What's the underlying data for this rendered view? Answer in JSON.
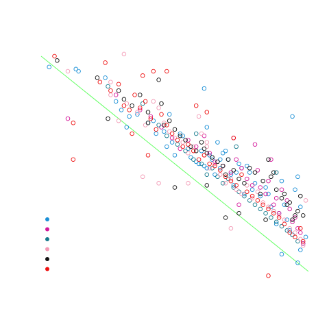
{
  "chart_data": {
    "type": "scatter",
    "title": "",
    "xlabel": "",
    "ylabel": "",
    "xlim": [
      0,
      100
    ],
    "ylim": [
      0,
      100
    ],
    "grid": false,
    "legend": {
      "placement": "left",
      "labels_shown": false
    },
    "trend_line": {
      "color": "#66ff66",
      "x": [
        0,
        100
      ],
      "y": [
        100,
        0
      ]
    },
    "series": [
      {
        "color": "#1a8fd6",
        "points": [
          [
            3,
            95
          ],
          [
            13,
            94
          ],
          [
            14,
            93
          ],
          [
            24,
            90
          ],
          [
            28,
            79
          ],
          [
            30,
            75
          ],
          [
            32,
            67
          ],
          [
            33,
            72
          ],
          [
            36,
            73
          ],
          [
            40,
            69
          ],
          [
            42,
            70
          ],
          [
            43,
            64
          ],
          [
            46,
            65
          ],
          [
            47,
            58
          ],
          [
            48,
            73
          ],
          [
            49,
            60
          ],
          [
            50,
            54
          ],
          [
            52,
            64
          ],
          [
            53,
            63
          ],
          [
            55,
            57
          ],
          [
            56,
            53
          ],
          [
            58,
            51
          ],
          [
            59,
            50
          ],
          [
            60,
            56
          ],
          [
            61,
            49
          ],
          [
            62,
            48
          ],
          [
            63,
            54
          ],
          [
            64,
            52
          ],
          [
            65,
            45
          ],
          [
            66,
            60
          ],
          [
            67,
            52
          ],
          [
            68,
            55
          ],
          [
            69,
            56
          ],
          [
            70,
            52
          ],
          [
            71,
            45
          ],
          [
            72,
            40
          ],
          [
            73,
            46
          ],
          [
            74,
            50
          ],
          [
            75,
            48
          ],
          [
            76,
            36
          ],
          [
            77,
            49
          ],
          [
            78,
            46
          ],
          [
            79,
            38
          ],
          [
            80,
            41
          ],
          [
            82,
            35
          ],
          [
            84,
            39
          ],
          [
            85,
            36
          ],
          [
            86,
            30
          ],
          [
            87,
            28
          ],
          [
            88,
            22
          ],
          [
            89,
            27
          ],
          [
            90,
            42
          ],
          [
            91,
            31
          ],
          [
            92,
            24
          ],
          [
            93,
            19
          ],
          [
            94,
            17
          ],
          [
            95,
            38
          ],
          [
            96,
            44
          ],
          [
            97,
            30
          ],
          [
            98,
            13
          ],
          [
            99,
            16
          ],
          [
            97,
            10
          ],
          [
            96,
            4
          ],
          [
            90,
            8
          ],
          [
            94,
            72
          ],
          [
            61,
            85
          ],
          [
            62,
            67
          ],
          [
            67,
            48
          ]
        ]
      },
      {
        "color": "#d4189a",
        "points": [
          [
            10,
            71
          ],
          [
            28,
            82
          ],
          [
            37,
            75
          ],
          [
            41,
            72
          ],
          [
            45,
            67
          ],
          [
            49,
            62
          ],
          [
            52,
            57
          ],
          [
            55,
            61
          ],
          [
            58,
            58
          ],
          [
            61,
            63
          ],
          [
            63,
            55
          ],
          [
            65,
            51
          ],
          [
            68,
            49
          ],
          [
            71,
            46
          ],
          [
            73,
            52
          ],
          [
            75,
            48
          ],
          [
            77,
            43
          ],
          [
            79,
            40
          ],
          [
            81,
            47
          ],
          [
            82,
            39
          ],
          [
            84,
            36
          ],
          [
            85,
            42
          ],
          [
            87,
            31
          ],
          [
            88,
            34
          ],
          [
            89,
            27
          ],
          [
            90,
            38
          ],
          [
            92,
            33
          ],
          [
            93,
            29
          ],
          [
            94,
            23
          ],
          [
            95,
            25
          ],
          [
            96,
            20
          ],
          [
            97,
            18
          ],
          [
            98,
            13
          ],
          [
            72,
            62
          ],
          [
            80,
            59
          ],
          [
            86,
            52
          ],
          [
            74,
            31
          ]
        ]
      },
      {
        "color": "#157a8c",
        "points": [
          [
            25,
            86
          ],
          [
            38,
            78
          ],
          [
            44,
            68
          ],
          [
            47,
            63
          ],
          [
            51,
            59
          ],
          [
            54,
            56
          ],
          [
            57,
            52
          ],
          [
            60,
            50
          ],
          [
            62,
            45
          ],
          [
            64,
            48
          ],
          [
            66,
            44
          ],
          [
            68,
            41
          ],
          [
            70,
            43
          ],
          [
            72,
            39
          ],
          [
            74,
            37
          ],
          [
            76,
            35
          ],
          [
            78,
            33
          ],
          [
            80,
            31
          ],
          [
            82,
            29
          ],
          [
            84,
            27
          ],
          [
            86,
            25
          ],
          [
            88,
            23
          ],
          [
            90,
            21
          ],
          [
            92,
            19
          ],
          [
            94,
            17
          ],
          [
            96,
            14
          ],
          [
            58,
            64
          ],
          [
            73,
            58
          ],
          [
            88,
            46
          ]
        ]
      },
      {
        "color": "#f39ab5",
        "points": [
          [
            10,
            93
          ],
          [
            26,
            82
          ],
          [
            29,
            70
          ],
          [
            31,
            101
          ],
          [
            32,
            78
          ],
          [
            36,
            74
          ],
          [
            39,
            68
          ],
          [
            42,
            79
          ],
          [
            44,
            76
          ],
          [
            46,
            69
          ],
          [
            48,
            65
          ],
          [
            50,
            62
          ],
          [
            53,
            60
          ],
          [
            55,
            55
          ],
          [
            57,
            58
          ],
          [
            59,
            72
          ],
          [
            61,
            54
          ],
          [
            62,
            60
          ],
          [
            63,
            48
          ],
          [
            65,
            50
          ],
          [
            67,
            45
          ],
          [
            69,
            41
          ],
          [
            71,
            43
          ],
          [
            73,
            38
          ],
          [
            75,
            36
          ],
          [
            77,
            40
          ],
          [
            79,
            34
          ],
          [
            81,
            37
          ],
          [
            83,
            32
          ],
          [
            85,
            30
          ],
          [
            87,
            28
          ],
          [
            89,
            26
          ],
          [
            91,
            24
          ],
          [
            93,
            20
          ],
          [
            95,
            18
          ],
          [
            97,
            15
          ],
          [
            98,
            12
          ],
          [
            38,
            44
          ],
          [
            44,
            41
          ],
          [
            55,
            41
          ],
          [
            71,
            20
          ],
          [
            99,
            33
          ],
          [
            60,
            64
          ],
          [
            26,
            88
          ],
          [
            62,
            58
          ]
        ]
      },
      {
        "color": "#111111",
        "points": [
          [
            6,
            98
          ],
          [
            21,
            90
          ],
          [
            25,
            71
          ],
          [
            29,
            84
          ],
          [
            31,
            80
          ],
          [
            34,
            77
          ],
          [
            37,
            82
          ],
          [
            40,
            74
          ],
          [
            44,
            89
          ],
          [
            46,
            68
          ],
          [
            48,
            70
          ],
          [
            50,
            66
          ],
          [
            52,
            63
          ],
          [
            54,
            61
          ],
          [
            56,
            58
          ],
          [
            58,
            56
          ],
          [
            60,
            60
          ],
          [
            61,
            57
          ],
          [
            62,
            55
          ],
          [
            64,
            53
          ],
          [
            66,
            51
          ],
          [
            68,
            49
          ],
          [
            69,
            45
          ],
          [
            70,
            52
          ],
          [
            72,
            47
          ],
          [
            74,
            43
          ],
          [
            76,
            41
          ],
          [
            78,
            48
          ],
          [
            80,
            46
          ],
          [
            82,
            36
          ],
          [
            83,
            42
          ],
          [
            85,
            52
          ],
          [
            86,
            44
          ],
          [
            87,
            46
          ],
          [
            88,
            38
          ],
          [
            90,
            34
          ],
          [
            91,
            36
          ],
          [
            92,
            31
          ],
          [
            93,
            32
          ],
          [
            94,
            24
          ],
          [
            95,
            26
          ],
          [
            96,
            28
          ],
          [
            97,
            35
          ],
          [
            98,
            26
          ],
          [
            45,
            78
          ],
          [
            40,
            69
          ],
          [
            50,
            39
          ],
          [
            62,
            40
          ],
          [
            69,
            25
          ],
          [
            74,
            27
          ],
          [
            84,
            24
          ]
        ]
      },
      {
        "color": "#ee1111",
        "points": [
          [
            5,
            100
          ],
          [
            12,
            69
          ],
          [
            22,
            88
          ],
          [
            26,
            84
          ],
          [
            29,
            87
          ],
          [
            31,
            77
          ],
          [
            33,
            75
          ],
          [
            35,
            82
          ],
          [
            37,
            76
          ],
          [
            39,
            79
          ],
          [
            41,
            71
          ],
          [
            43,
            66
          ],
          [
            45,
            73
          ],
          [
            47,
            68
          ],
          [
            49,
            64
          ],
          [
            51,
            61
          ],
          [
            53,
            58
          ],
          [
            55,
            59
          ],
          [
            57,
            56
          ],
          [
            59,
            52
          ],
          [
            61,
            54
          ],
          [
            63,
            50
          ],
          [
            65,
            49
          ],
          [
            67,
            47
          ],
          [
            69,
            44
          ],
          [
            71,
            42
          ],
          [
            73,
            40
          ],
          [
            75,
            45
          ],
          [
            77,
            37
          ],
          [
            79,
            35
          ],
          [
            81,
            33
          ],
          [
            83,
            31
          ],
          [
            85,
            29
          ],
          [
            87,
            27
          ],
          [
            89,
            25
          ],
          [
            91,
            22
          ],
          [
            93,
            18
          ],
          [
            95,
            16
          ],
          [
            97,
            20
          ],
          [
            98,
            14
          ],
          [
            38,
            91
          ],
          [
            42,
            93
          ],
          [
            40,
            54
          ],
          [
            34,
            64
          ],
          [
            47,
            93
          ],
          [
            58,
            77
          ],
          [
            62,
            74
          ],
          [
            72,
            62
          ],
          [
            12,
            52
          ],
          [
            24,
            97
          ],
          [
            85,
            -2
          ]
        ]
      }
    ]
  }
}
